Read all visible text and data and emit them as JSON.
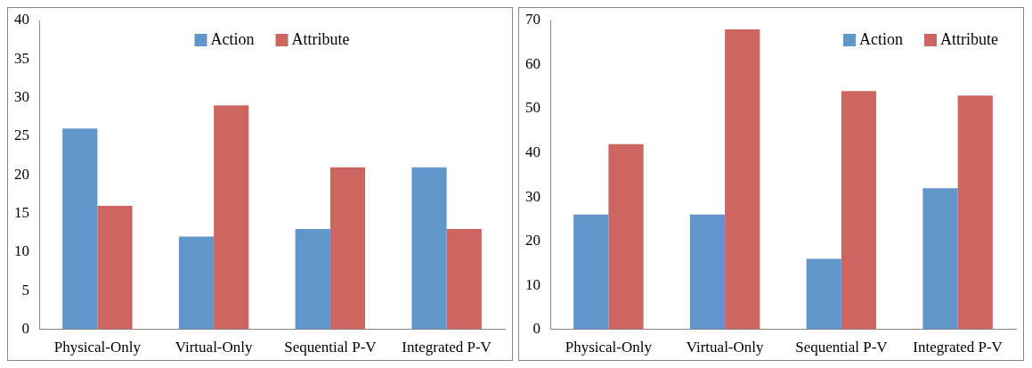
{
  "chart_data": [
    {
      "type": "bar",
      "categories": [
        "Physical-Only",
        "Virtual-Only",
        "Sequential P-V",
        "Integrated P-V"
      ],
      "series": [
        {
          "name": "Action",
          "color": "#6096c9",
          "values": [
            26,
            12,
            13,
            21
          ]
        },
        {
          "name": "Attribute",
          "color": "#cd6660",
          "values": [
            16,
            29,
            21,
            13
          ]
        }
      ],
      "ylim": [
        0,
        40
      ],
      "yticks": [
        0,
        5,
        10,
        15,
        20,
        25,
        30,
        35,
        40
      ],
      "grid": false,
      "legend": "top"
    },
    {
      "type": "bar",
      "categories": [
        "Physical-Only",
        "Virtual-Only",
        "Sequential P-V",
        "Integrated P-V"
      ],
      "series": [
        {
          "name": "Action",
          "color": "#6096c9",
          "values": [
            26,
            26,
            16,
            32
          ]
        },
        {
          "name": "Attribute",
          "color": "#cd6660",
          "values": [
            42,
            68,
            54,
            53
          ]
        }
      ],
      "ylim": [
        0,
        70
      ],
      "yticks": [
        0,
        10,
        20,
        30,
        40,
        50,
        60,
        70
      ],
      "grid": false,
      "legend": "top right"
    }
  ]
}
